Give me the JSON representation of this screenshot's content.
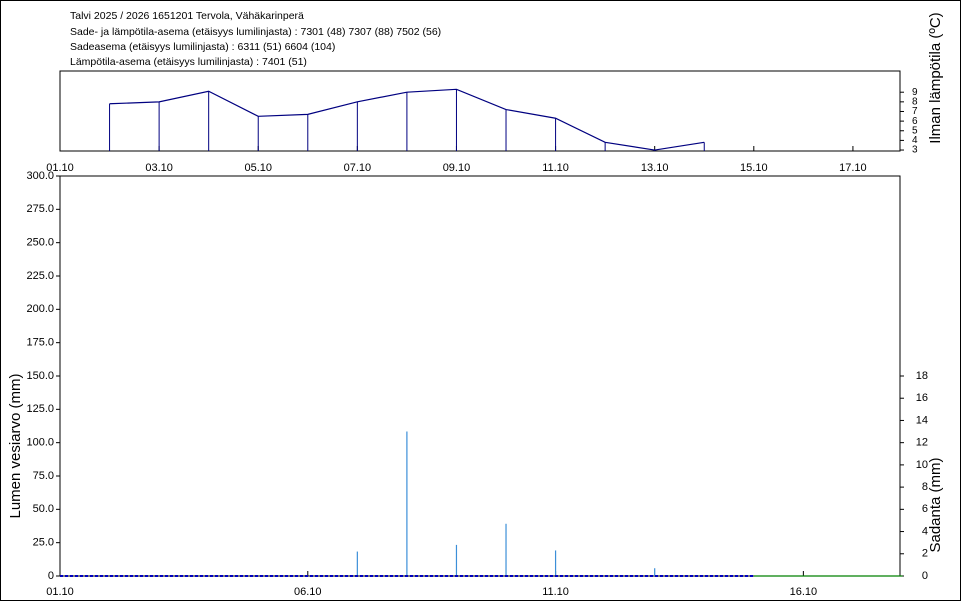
{
  "header": {
    "lines": [
      "Talvi 2025 / 2026 1651201 Tervola, Vähäkarinperä",
      "Sade- ja lämpötila-asema (etäisyys lumilinjasta) :  7301 (48) 7307 (88) 7502 (56)",
      "Sadeasema (etäisyys lumilinjasta) :  6311 (51) 6604 (104)",
      "Lämpötila-asema (etäisyys lumilinjasta) :  7401 (51)"
    ]
  },
  "chart_data": [
    {
      "type": "line",
      "y2_label": "Ilman lämpötila (ºC)",
      "xlim": [
        1,
        17.95
      ],
      "xticks": [
        {
          "value": 1,
          "label": "01.10"
        },
        {
          "value": 3,
          "label": "03.10"
        },
        {
          "value": 5,
          "label": "05.10"
        },
        {
          "value": 7,
          "label": "07.10"
        },
        {
          "value": 9,
          "label": "09.10"
        },
        {
          "value": 11,
          "label": "11.10"
        },
        {
          "value": 13,
          "label": "13.10"
        },
        {
          "value": 15,
          "label": "15.10"
        },
        {
          "value": 17,
          "label": "17.10"
        }
      ],
      "y2lim": [
        2.9,
        11.2
      ],
      "y2ticks": [
        3,
        4,
        5,
        6,
        7,
        8,
        9
      ],
      "drop_lines": true,
      "series": [
        {
          "color": "#000080",
          "axis": "y2",
          "x": [
            2,
            3,
            4,
            5,
            6,
            7,
            8,
            9,
            10,
            11,
            12,
            13,
            14
          ],
          "values": [
            7.8,
            8.0,
            9.1,
            6.5,
            6.7,
            8.0,
            9.0,
            9.3,
            7.2,
            6.3,
            3.8,
            3.0,
            3.8
          ]
        }
      ]
    },
    {
      "type": "bar",
      "y_label": "Lumen vesiarvo (mm)",
      "y2_label": "Sadanta (mm)",
      "xlim": [
        1,
        17.95
      ],
      "xticks": [
        {
          "value": 1,
          "label": "01.10"
        },
        {
          "value": 6,
          "label": "06.10"
        },
        {
          "value": 11,
          "label": "11.10"
        },
        {
          "value": 16,
          "label": "16.10"
        }
      ],
      "ylim": [
        0,
        300
      ],
      "yticks": [
        0,
        {
          "value": 25,
          "label": "25.0"
        },
        {
          "value": 50,
          "label": "50.0"
        },
        {
          "value": 75,
          "label": "75.0"
        },
        {
          "value": 100,
          "label": "100.0"
        },
        {
          "value": 125,
          "label": "125.0"
        },
        {
          "value": 150,
          "label": "150.0"
        },
        {
          "value": 175,
          "label": "175.0"
        },
        {
          "value": 200,
          "label": "200.0"
        },
        {
          "value": 225,
          "label": "225.0"
        },
        {
          "value": 250,
          "label": "250.0"
        },
        {
          "value": 275,
          "label": "275.0"
        },
        {
          "value": 300,
          "label": "300.0"
        }
      ],
      "y2lim": [
        0,
        36
      ],
      "y2ticks": [
        0,
        2,
        4,
        6,
        8,
        10,
        12,
        14,
        16,
        18
      ],
      "series": [
        {
          "type": "bar",
          "axis": "y2",
          "color": "#3c8fd8",
          "x": [
            7,
            8,
            9,
            10,
            11,
            13
          ],
          "values": [
            2.2,
            13.0,
            2.8,
            4.7,
            2.3,
            0.7
          ]
        },
        {
          "type": "line",
          "color": "#0000c0",
          "dashed": true,
          "x": [
            1,
            2,
            3,
            4,
            5,
            6,
            7,
            8,
            9,
            10,
            11,
            12,
            13,
            14,
            15
          ],
          "values": [
            0,
            0,
            0,
            0,
            0,
            0,
            0,
            0,
            0,
            0,
            0,
            0,
            0,
            0,
            0
          ]
        },
        {
          "type": "line",
          "color": "#008000",
          "x": [
            15,
            18
          ],
          "values": [
            0,
            0
          ]
        }
      ]
    }
  ]
}
